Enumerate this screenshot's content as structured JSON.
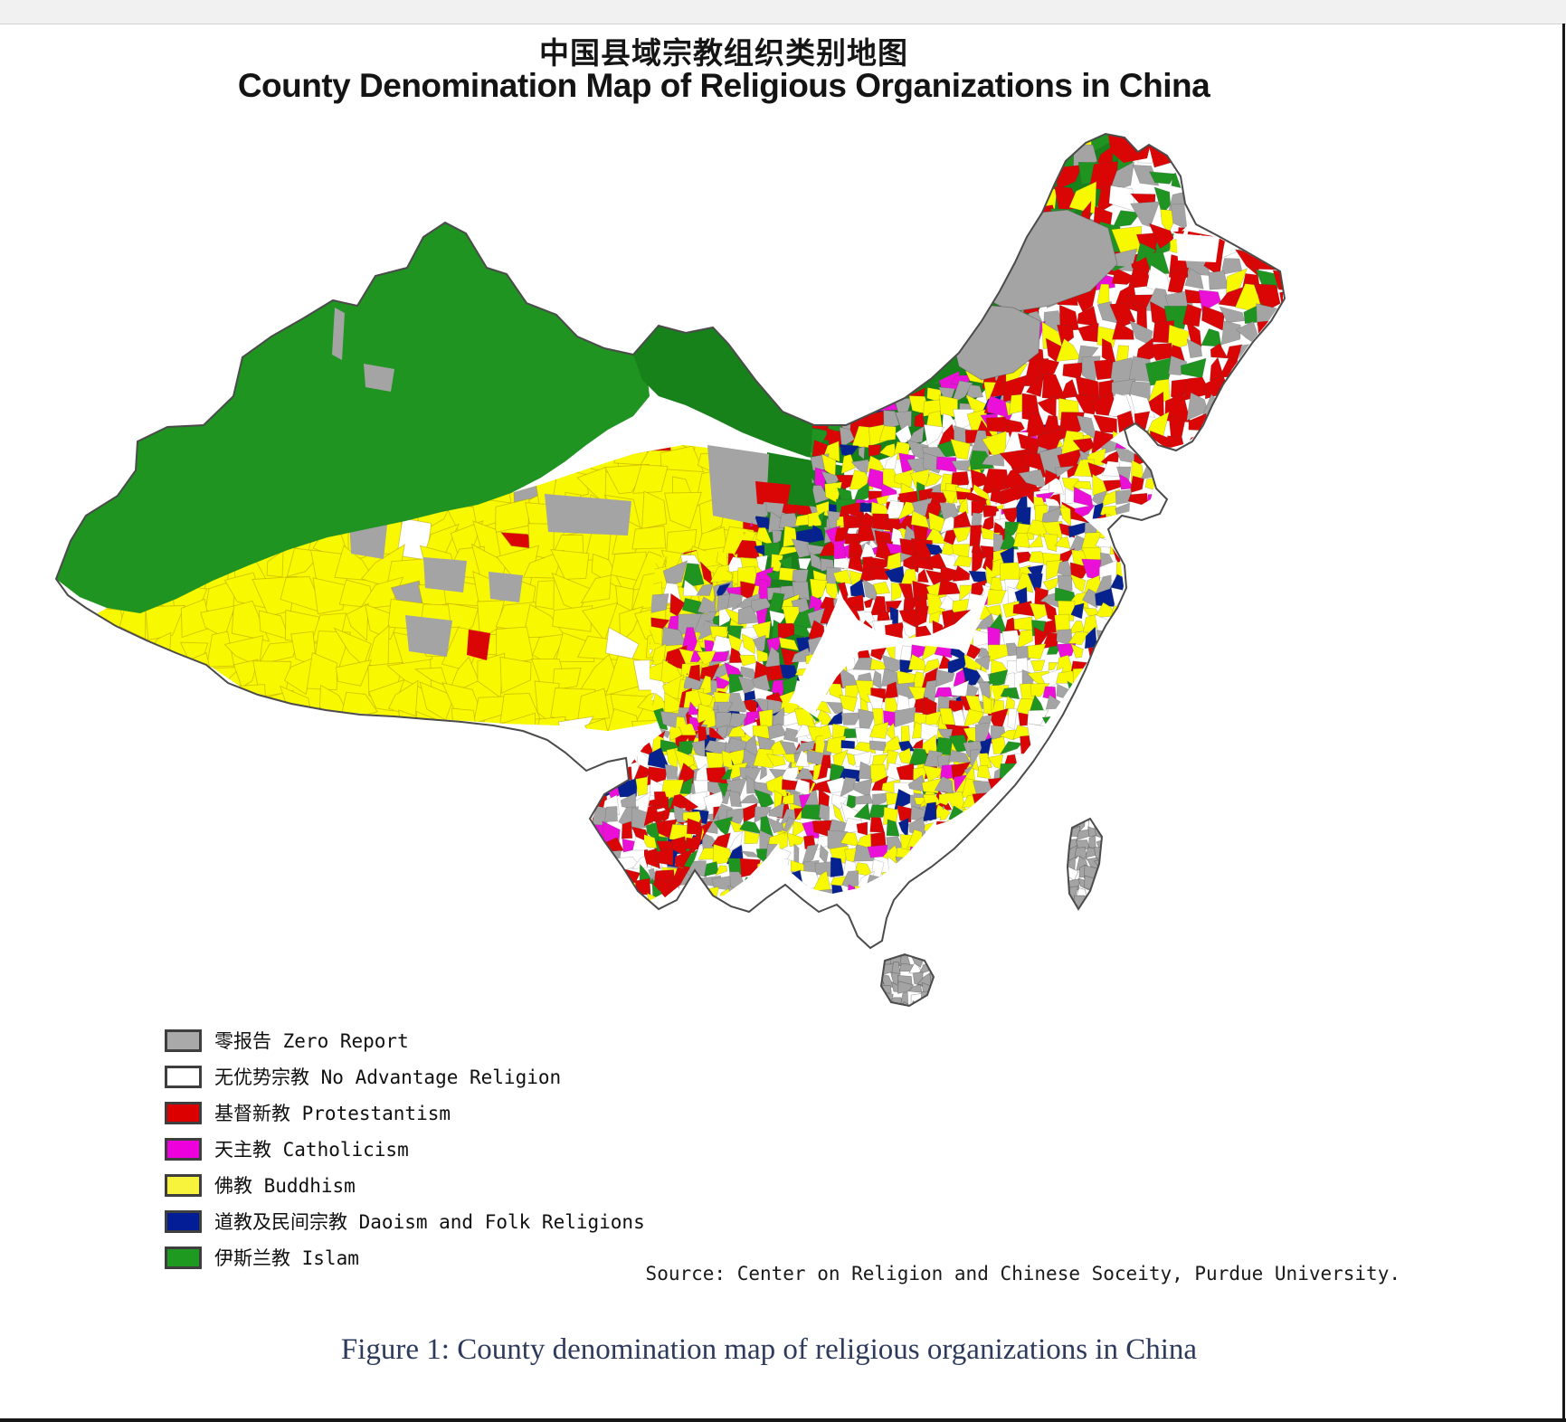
{
  "title": {
    "zh": "中国县域宗教组织类别地图",
    "en": "County Denomination Map of Religious Organizations in China"
  },
  "legend": {
    "items": [
      {
        "key": "zero_report",
        "zh": "零报告",
        "en": "Zero Report",
        "label": "零报告 Zero Report",
        "color": "#a9a9a9"
      },
      {
        "key": "no_advantage",
        "zh": "无优势宗教",
        "en": "No Advantage Religion",
        "label": "无优势宗教 No Advantage Religion",
        "color": "#ffffff"
      },
      {
        "key": "protestantism",
        "zh": "基督新教",
        "en": "Protestantism",
        "label": "基督新教 Protestantism",
        "color": "#dd0000"
      },
      {
        "key": "catholicism",
        "zh": "天主教",
        "en": "Catholicism",
        "label": "天主教 Catholicism",
        "color": "#ee00dd"
      },
      {
        "key": "buddhism",
        "zh": "佛教",
        "en": "Buddhism",
        "label": "佛教 Buddhism",
        "color": "#f7f23c"
      },
      {
        "key": "daoism_folk",
        "zh": "道教及民间宗教",
        "en": "Daoism and Folk Religions",
        "label": "道教及民间宗教 Daoism and Folk Religions",
        "color": "#021d96"
      },
      {
        "key": "islam",
        "zh": "伊斯兰教",
        "en": "Islam",
        "label": "伊斯兰教 Islam",
        "color": "#1f9a21"
      }
    ]
  },
  "source": "Source: Center on Religion and Chinese Soceity, Purdue University.",
  "caption": "Figure 1: County denomination map of religious organizations in China",
  "map": {
    "palette": {
      "zero": "#a4a4a4",
      "none": "#ffffff",
      "prot": "#da0505",
      "cath": "#e a10d8",
      "budd": "#f8f800",
      "daoism": "#06228f",
      "islam": "#1f9421",
      "islam_dark": "#17811a",
      "outline": "#4b4b4b"
    },
    "regions": [
      {
        "area": "Xinjiang (northwest)",
        "dominant": "Islam (green), a few Zero Report counties"
      },
      {
        "area": "Inner Mongolia northern border band",
        "dominant": "Islam (green band) with Zero Report patches"
      },
      {
        "area": "Tibet and Qinghai plateau",
        "dominant": "Buddhism (yellow) with scattered Zero Report counties"
      },
      {
        "area": "Northeast (Manchuria)",
        "dominant": "Protestantism (red) with Zero Report and Islam patches"
      },
      {
        "area": "Henan / North China Plain",
        "dominant": "Protestantism (red cluster)"
      },
      {
        "area": "Hebei / Shanxi / Beijing area",
        "dominant": "Mixed: Zero Report, Buddhism, Catholicism, Protestantism"
      },
      {
        "area": "East and southeast coast",
        "dominant": "Buddhism-dominant mosaic with Protestantism and Zero Report"
      },
      {
        "area": "Guizhou / Guangxi",
        "dominant": "Zero Report-dominant mosaic"
      },
      {
        "area": "Yunnan",
        "dominant": "Mixed Buddhism, Protestantism, Islam cluster"
      },
      {
        "area": "Sichuan basin",
        "dominant": "Mixed Buddhism and Zero Report"
      },
      {
        "area": "Taiwan",
        "dominant": "Zero Report"
      },
      {
        "area": "Hainan",
        "dominant": "Zero Report"
      }
    ]
  }
}
